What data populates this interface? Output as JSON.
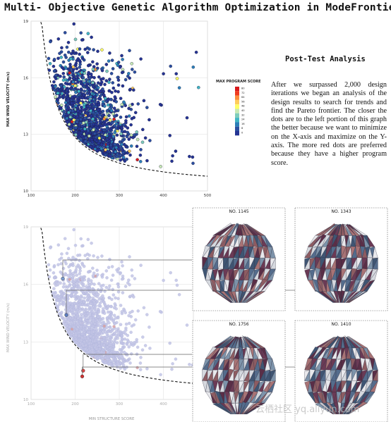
{
  "page": {
    "title": "Multi- Objective Genetic Algorithm Optimization in ModeFrontier",
    "analysis_heading": "Post-Test Analysis",
    "analysis_text": "After we surpassed 2,000 design iterations we began an analysis of the design results to search for trends and find the Pareto frontier. The closer the dots are to the left portion of this graph the better because we want to minimize on the X-axis and maximize on the Y-axis. The more red dots are preferred because they have a higher program score.",
    "watermark": "云栖社区 yq.aliyun.com"
  },
  "chart_data": [
    {
      "type": "scatter",
      "title": "",
      "xlabel": "",
      "ylabel": "MAX WIND VELOCITY (m/s)",
      "xlim": [
        100,
        500
      ],
      "ylim": [
        10,
        19
      ],
      "xticks": [
        100,
        200,
        300,
        400,
        500
      ],
      "yticks": [
        10,
        13,
        16,
        19
      ],
      "grid": true,
      "colorbar": {
        "title": "MAX PROGRAM SCORE",
        "ticks": [
          80,
          72,
          64,
          56,
          48,
          40,
          32,
          24,
          16,
          8,
          0
        ],
        "colors": [
          "#d7191c",
          "#f03b20",
          "#fd8d3c",
          "#fecc5c",
          "#ffff66",
          "#c7e9b4",
          "#7fcdbb",
          "#41b6c4",
          "#2c7fb8",
          "#2b4fa0",
          "#253494"
        ]
      },
      "frontier": "dashed Pareto curve",
      "n_points": 1500
    },
    {
      "type": "scatter",
      "title": "",
      "xlabel": "MIN STRUCTURE SCORE",
      "ylabel": "MAX WIND VELOCITY (m/s)",
      "xlim": [
        100,
        500
      ],
      "ylim": [
        10,
        19
      ],
      "xticks": [
        100,
        200,
        300,
        400
      ],
      "yticks": [
        10,
        13,
        16,
        19
      ],
      "grid": true,
      "frontier": "dashed Pareto curve",
      "highlighted_designs": [
        {
          "label": "NO. 1145",
          "x": 172,
          "y": 16.3
        },
        {
          "label": "NO. 1343",
          "x": 180,
          "y": 14.4
        },
        {
          "label": "NO. 1756",
          "x": 218,
          "y": 11.5
        },
        {
          "label": "NO. 1410",
          "x": 216,
          "y": 11.2
        }
      ]
    }
  ],
  "thumbnails": [
    {
      "label": "NO. 1145"
    },
    {
      "label": "NO. 1343"
    },
    {
      "label": "NO. 1756"
    },
    {
      "label": "NO. 1410"
    }
  ]
}
